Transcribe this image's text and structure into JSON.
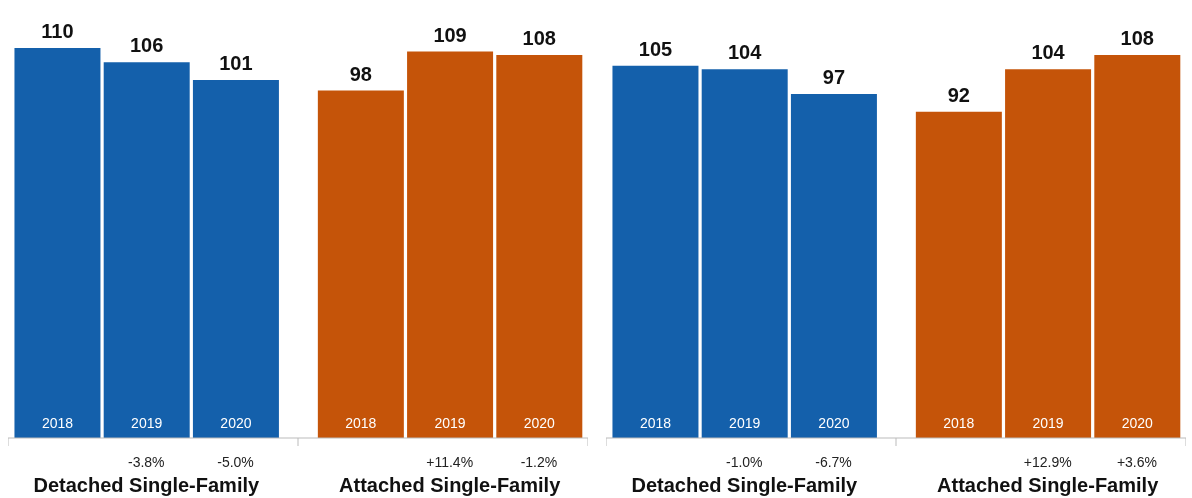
{
  "chart_data": [
    {
      "type": "bar",
      "categories": [
        "2018",
        "2019",
        "2020",
        "2018",
        "2019",
        "2020"
      ],
      "values": [
        110,
        106,
        101,
        98,
        109,
        108
      ],
      "colors": [
        "#1460ab",
        "#1460ab",
        "#1460ab",
        "#c55409",
        "#c55409",
        "#c55409"
      ],
      "data_labels": true,
      "annotations": [
        "Detached Single-Family",
        "Attached Single-Family",
        "-3.8%",
        "-5.0%",
        "+11.4%",
        "-1.2%"
      ]
    },
    {
      "type": "bar",
      "categories": [
        "2018",
        "2019",
        "2020",
        "2018",
        "2019",
        "2020"
      ],
      "values": [
        105,
        104,
        97,
        92,
        104,
        108
      ],
      "colors": [
        "#1460ab",
        "#1460ab",
        "#1460ab",
        "#c55409",
        "#c55409",
        "#c55409"
      ],
      "data_labels": true,
      "annotations": [
        "Detached Single-Family",
        "Attached Single-Family",
        "-1.0%",
        "-6.7%",
        "+12.9%",
        "+3.6%"
      ]
    }
  ]
}
